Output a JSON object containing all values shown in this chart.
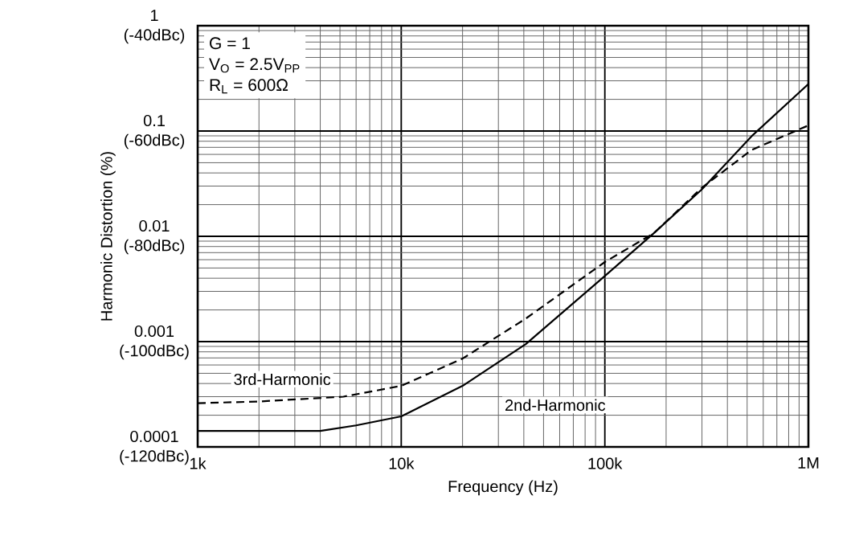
{
  "chart_data": {
    "type": "line",
    "xlabel": "Frequency (Hz)",
    "ylabel": "Harmonic Distortion (%)",
    "log": "xy",
    "grid": true,
    "xlim": [
      1000,
      1000000
    ],
    "ylim": [
      0.0001,
      1
    ],
    "xticks": [
      {
        "value": 1000,
        "label": "1k"
      },
      {
        "value": 10000,
        "label": "10k"
      },
      {
        "value": 100000,
        "label": "100k"
      },
      {
        "value": 1000000,
        "label": "1M"
      }
    ],
    "yticks": [
      0.0001,
      0.001,
      0.01,
      0.1,
      1
    ],
    "y2lim": [
      -120,
      -40
    ],
    "y2ticks": [
      {
        "value": -120,
        "label": "(-120dBc)"
      },
      {
        "value": -100,
        "label": "(-100dBc)"
      },
      {
        "value": -80,
        "label": "(-80dBc)"
      },
      {
        "value": -60,
        "label": "(-60dBc)"
      },
      {
        "value": -40,
        "label": "(-40dBc)"
      }
    ],
    "annotations": [
      "G = 1",
      "V$_{O}$ = 2.5V$_{PP}$",
      "R$_{L}$ = 600Ω"
    ],
    "series": [
      {
        "name": "2nd-Harmonic",
        "color": "#000000",
        "line_style": "solid",
        "x": [
          1000,
          2000,
          4000,
          6000,
          10000,
          20000,
          41000,
          100000,
          174000,
          300000,
          525000,
          1000000
        ],
        "values": [
          0.000142,
          0.000142,
          0.000142,
          0.00016,
          0.000195,
          0.00038,
          0.00095,
          0.0042,
          0.0107,
          0.028,
          0.089,
          0.28
        ]
      },
      {
        "name": "3rd-Harmonic",
        "color": "#000000",
        "line_style": "dashed",
        "x": [
          1000,
          2000,
          5200,
          10000,
          20000,
          41000,
          100000,
          174000,
          300000,
          525000,
          1000000
        ],
        "values": [
          0.00026,
          0.00027,
          0.0003,
          0.00038,
          0.00069,
          0.00166,
          0.0057,
          0.0107,
          0.029,
          0.066,
          0.113
        ]
      }
    ]
  }
}
